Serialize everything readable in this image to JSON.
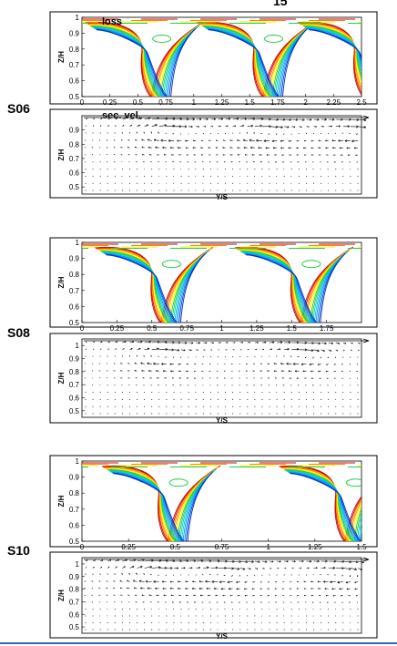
{
  "top_fragment": "15",
  "panels": [
    {
      "case_label": "S06",
      "loss": {
        "annotation": "loss",
        "ylabel": "Z/H",
        "yticks": [
          "1",
          "0.9",
          "0.8",
          "0.7",
          "0.6",
          "0.5"
        ],
        "xticks": [
          "0",
          "0.25",
          "0.5",
          "0.75",
          "1",
          "1.25",
          "1.5",
          "1.75",
          "2",
          "2.25",
          "2.5"
        ],
        "x_range": [
          0,
          2.5
        ],
        "y_range": [
          0.5,
          1.0
        ],
        "wake_centers": [
          0.6,
          1.6,
          2.5
        ]
      },
      "vel": {
        "annotation": "sec. vel.",
        "ylabel": "Z/H",
        "xlabel": "Y/S",
        "yticks": [
          "0.9",
          "0.8",
          "0.7",
          "0.6",
          "0.5"
        ],
        "y_range": [
          0.45,
          1.0
        ],
        "vortex_x_fractions": [
          0.3,
          0.65,
          0.98
        ]
      }
    },
    {
      "case_label": "S08",
      "loss": {
        "annotation": "",
        "ylabel": "Z/H",
        "yticks": [
          "1",
          "0.9",
          "0.8",
          "0.7",
          "0.6",
          "0.5"
        ],
        "xticks": [
          "0",
          "0.25",
          "0.5",
          "0.75",
          "1",
          "1.25",
          "1.5",
          "1.75"
        ],
        "x_range": [
          0,
          2.0
        ],
        "y_range": [
          0.5,
          1.0
        ],
        "wake_centers": [
          0.55,
          1.55
        ]
      },
      "vel": {
        "annotation": "",
        "ylabel": "Z/H",
        "xlabel": "Y/S",
        "yticks": [
          "1",
          "0.9",
          "0.8",
          "0.7",
          "0.6",
          "0.5"
        ],
        "y_range": [
          0.45,
          1.05
        ],
        "vortex_x_fractions": [
          0.28,
          0.78
        ]
      }
    },
    {
      "case_label": "S10",
      "loss": {
        "annotation": "",
        "ylabel": "Z/H",
        "yticks": [
          "1",
          "0.9",
          "0.8",
          "0.7",
          "0.6",
          "0.5"
        ],
        "xticks": [
          "0",
          "0.25",
          "0.5",
          "0.75",
          "1",
          "1.25",
          "1.5"
        ],
        "x_range": [
          0,
          1.5
        ],
        "y_range": [
          0.5,
          1.0
        ],
        "wake_centers": [
          0.45,
          1.4
        ]
      },
      "vel": {
        "annotation": "",
        "ylabel": "Z/H",
        "xlabel": "Y/S",
        "yticks": [
          "1",
          "0.9",
          "0.8",
          "0.7",
          "0.6",
          "0.5"
        ],
        "y_range": [
          0.45,
          1.05
        ],
        "vortex_x_fractions": [
          0.25,
          0.5,
          0.92
        ]
      }
    }
  ],
  "contour_colors": [
    "#cc0000",
    "#ff8800",
    "#ffee00",
    "#22cc44",
    "#00cccc",
    "#0099ff",
    "#0033cc"
  ]
}
